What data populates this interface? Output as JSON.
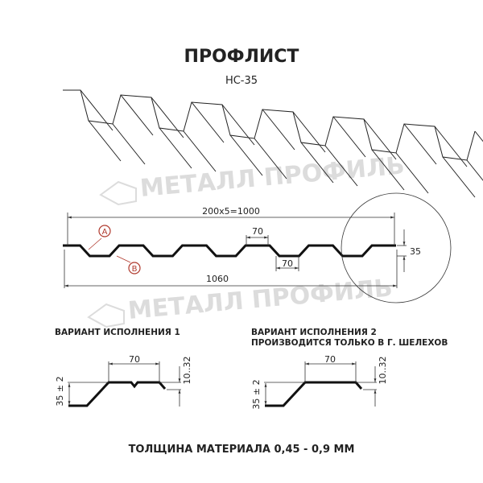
{
  "title": "ПРОФЛИСТ",
  "model": "НС-35",
  "watermark": "МЕТАЛЛ ПРОФИЛЬ",
  "dimensions": {
    "pitch_total": "200х5=1000",
    "top_flat": "70",
    "bottom_flat": "70",
    "height": "35",
    "full_width": "1060",
    "marker_a": "A",
    "marker_b": "B"
  },
  "variant1": {
    "label": "ВАРИАНТ ИСПОЛНЕНИЯ 1",
    "width": "70",
    "height": "35 ± 2",
    "edge": "10..32"
  },
  "variant2": {
    "label": "ВАРИАНТ ИСПОЛНЕНИЯ 2",
    "note": "ПРОИЗВОДИТСЯ ТОЛЬКО В Г. ШЕЛЕХОВ",
    "width": "70",
    "height": "35 ± 2",
    "edge": "10..32"
  },
  "footer": "ТОЛЩИНА МАТЕРИАЛА 0,45 - 0,9 ММ",
  "colors": {
    "marker": "#b03a2e",
    "line": "#111111",
    "watermark": "#dcdcdc"
  }
}
